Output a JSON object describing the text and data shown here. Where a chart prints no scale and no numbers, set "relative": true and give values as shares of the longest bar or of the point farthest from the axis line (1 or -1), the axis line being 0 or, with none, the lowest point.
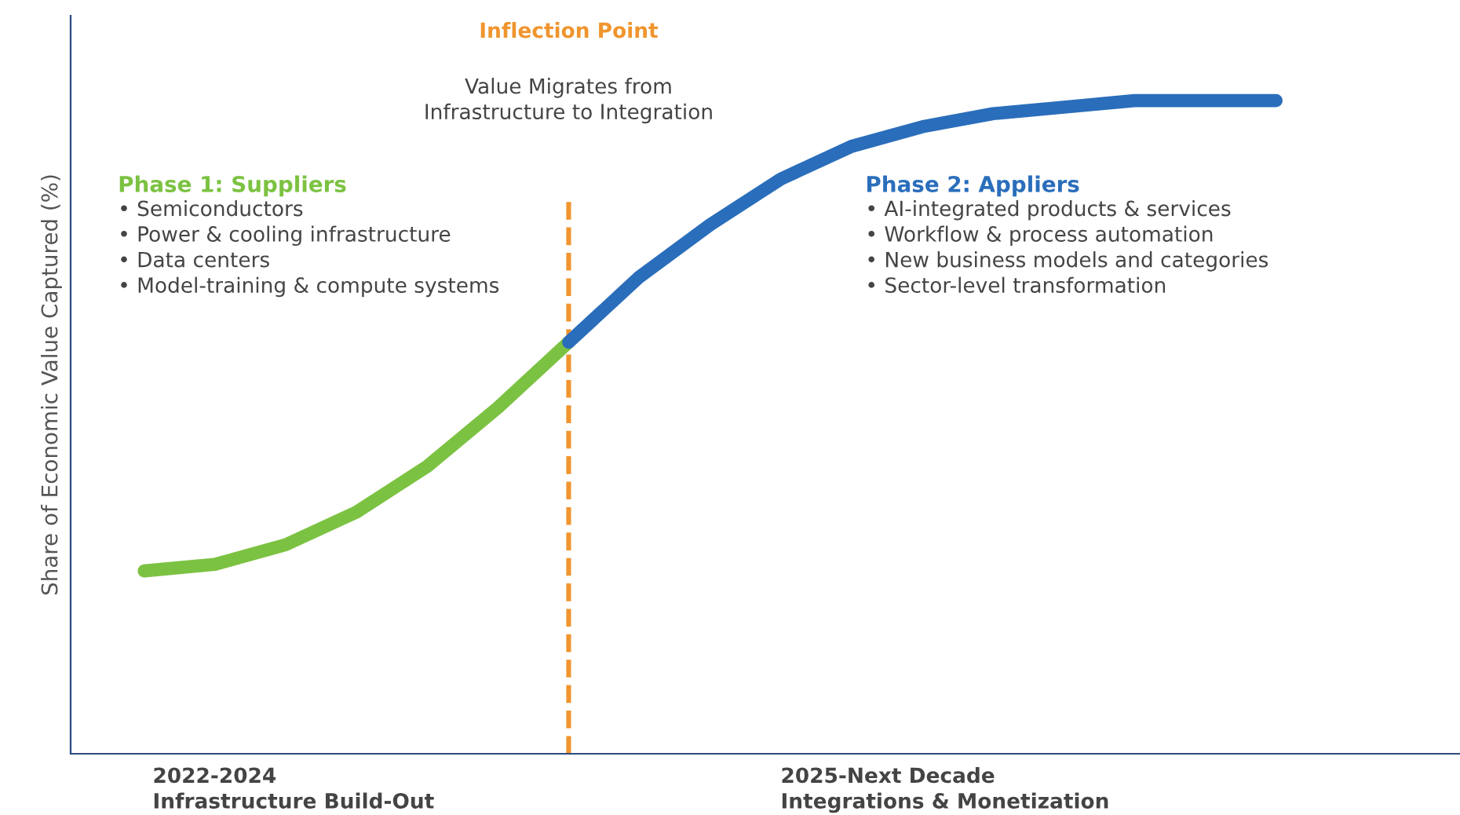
{
  "chart_data": {
    "type": "line",
    "relative": true,
    "ylabel": "Share of Economic Value Captured (%)",
    "categories": [
      null,
      null,
      null,
      null,
      null,
      null,
      null,
      null,
      null,
      null,
      null,
      null,
      null,
      null,
      null,
      null,
      null
    ],
    "series": [
      {
        "name": "Phase 1: Suppliers",
        "color": "#7cc242",
        "values": [
          0.28,
          0.29,
          0.32,
          0.37,
          0.44,
          0.53,
          0.63,
          null,
          null,
          null,
          null,
          null,
          null,
          null,
          null,
          null,
          null
        ]
      },
      {
        "name": "Phase 2: Appliers",
        "color": "#2a6ebb",
        "values": [
          null,
          null,
          null,
          null,
          null,
          null,
          0.63,
          0.73,
          0.81,
          0.88,
          0.93,
          0.96,
          0.98,
          0.99,
          1.0,
          1.0,
          1.0
        ]
      }
    ],
    "annotations": [
      "Inflection Point",
      "Value Migrates from\nInfrastructure to Integration",
      "• Semiconductors\n• Power & cooling infrastructure\n• Data centers\n• Model-training & compute systems",
      "• AI-integrated products & services\n• Workflow & process automation\n• New business models and categories\n• Sector-level transformation",
      "2022-2024\nInfrastructure Build-Out",
      "2025-Next Decade\nIntegrations & Monetization"
    ],
    "grid": false,
    "legend": false,
    "marker": "none",
    "line_style": "solid"
  }
}
